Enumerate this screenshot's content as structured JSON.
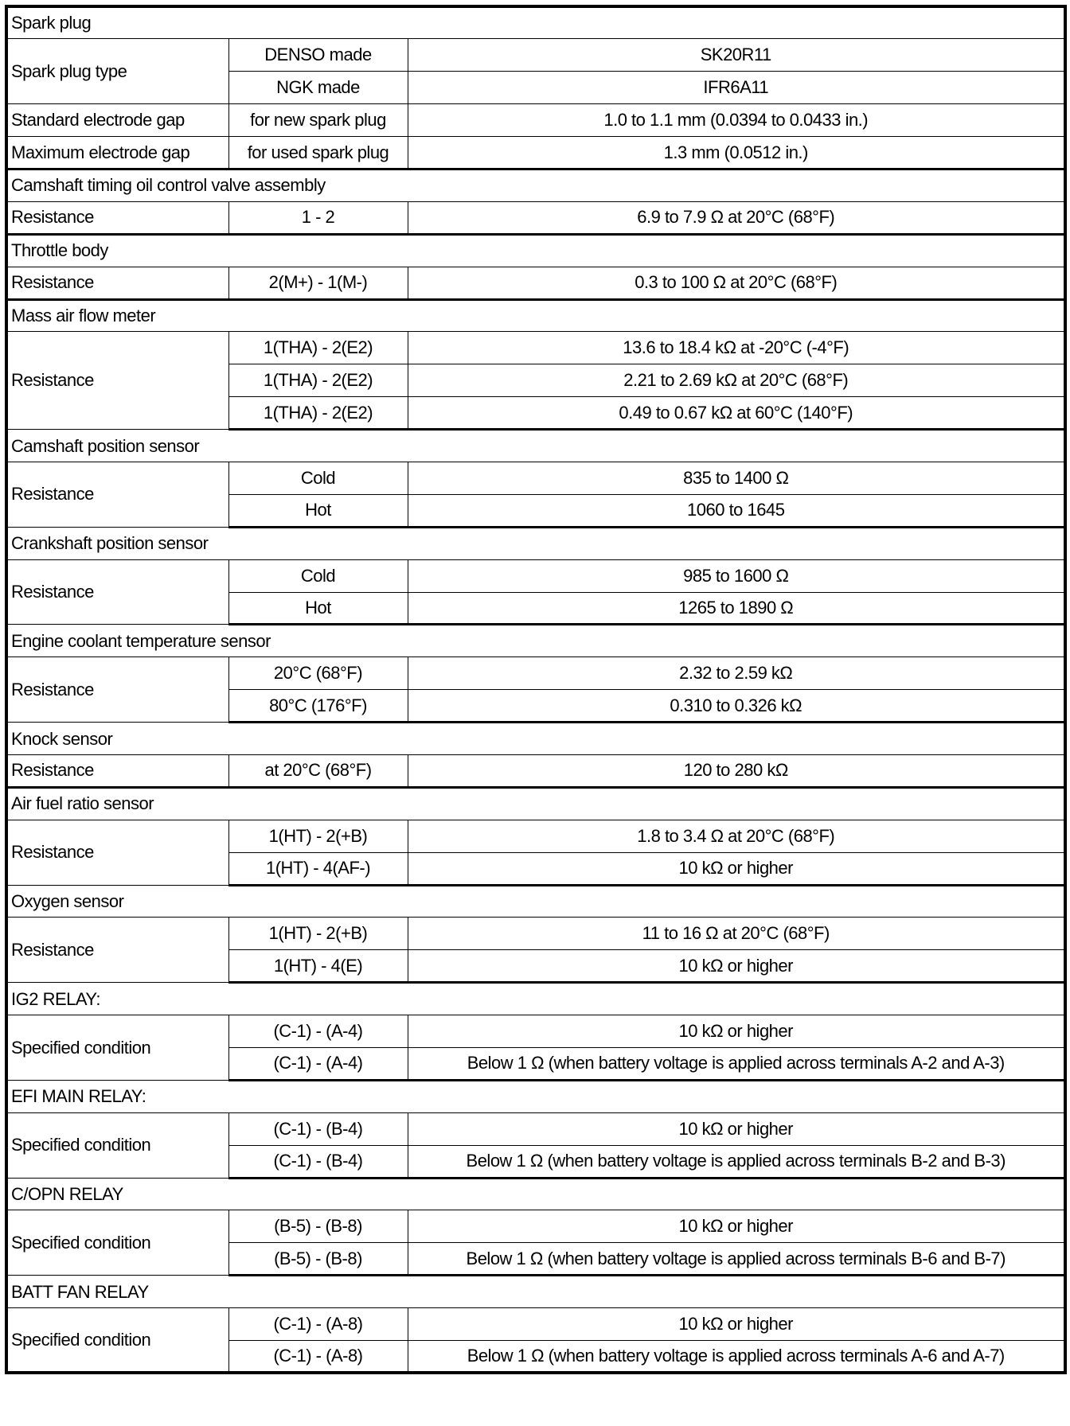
{
  "sections": [
    {
      "title": "Spark plug",
      "rows": [
        {
          "label": "Spark plug type",
          "sub": [
            {
              "cond": "DENSO made",
              "value": "SK20R11"
            },
            {
              "cond": "NGK made",
              "value": "IFR6A11"
            }
          ]
        },
        {
          "label": "Standard electrode gap",
          "sub": [
            {
              "cond": "for new spark plug",
              "value": "1.0 to 1.1 mm (0.0394 to 0.0433 in.)"
            }
          ]
        },
        {
          "label": "Maximum electrode gap",
          "sub": [
            {
              "cond": "for used spark plug",
              "value": "1.3 mm (0.0512 in.)"
            }
          ]
        }
      ]
    },
    {
      "title": "Camshaft timing oil control valve assembly",
      "rows": [
        {
          "label": "Resistance",
          "sub": [
            {
              "cond": "1 - 2",
              "value": "6.9 to 7.9 Ω at 20°C (68°F)"
            }
          ]
        }
      ]
    },
    {
      "title": "Throttle body",
      "rows": [
        {
          "label": "Resistance",
          "sub": [
            {
              "cond": "2(M+) - 1(M-)",
              "value": "0.3 to 100 Ω at 20°C (68°F)"
            }
          ]
        }
      ]
    },
    {
      "title": "Mass air flow meter",
      "rows": [
        {
          "label": "Resistance",
          "sub": [
            {
              "cond": "1(THA) - 2(E2)",
              "value": "13.6 to 18.4 kΩ at -20°C (-4°F)"
            },
            {
              "cond": "1(THA) - 2(E2)",
              "value": "2.21 to 2.69 kΩ at 20°C (68°F)"
            },
            {
              "cond": "1(THA) - 2(E2)",
              "value": "0.49 to 0.67 kΩ at 60°C (140°F)"
            }
          ]
        }
      ]
    },
    {
      "title": "Camshaft position sensor",
      "rows": [
        {
          "label": "Resistance",
          "sub": [
            {
              "cond": "Cold",
              "value": "835 to 1400 Ω"
            },
            {
              "cond": "Hot",
              "value": "1060 to 1645"
            }
          ]
        }
      ]
    },
    {
      "title": "Crankshaft position sensor",
      "rows": [
        {
          "label": "Resistance",
          "sub": [
            {
              "cond": "Cold",
              "value": "985 to 1600 Ω"
            },
            {
              "cond": "Hot",
              "value": "1265 to 1890 Ω"
            }
          ]
        }
      ]
    },
    {
      "title": "Engine coolant temperature sensor",
      "rows": [
        {
          "label": "Resistance",
          "sub": [
            {
              "cond": "20°C (68°F)",
              "value": "2.32 to 2.59 kΩ"
            },
            {
              "cond": "80°C (176°F)",
              "value": "0.310 to 0.326 kΩ"
            }
          ]
        }
      ]
    },
    {
      "title": "Knock sensor",
      "rows": [
        {
          "label": "Resistance",
          "sub": [
            {
              "cond": "at 20°C (68°F)",
              "value": "120 to 280 kΩ"
            }
          ]
        }
      ]
    },
    {
      "title": "Air fuel ratio sensor",
      "rows": [
        {
          "label": "Resistance",
          "sub": [
            {
              "cond": "1(HT) - 2(+B)",
              "value": "1.8 to 3.4 Ω at 20°C (68°F)"
            },
            {
              "cond": "1(HT) - 4(AF-)",
              "value": "10 kΩ or higher"
            }
          ]
        }
      ]
    },
    {
      "title": "Oxygen sensor",
      "rows": [
        {
          "label": "Resistance",
          "sub": [
            {
              "cond": "1(HT) - 2(+B)",
              "value": "11 to 16 Ω at 20°C (68°F)"
            },
            {
              "cond": "1(HT) - 4(E)",
              "value": "10 kΩ or higher"
            }
          ]
        }
      ]
    },
    {
      "title": "IG2 RELAY:",
      "rows": [
        {
          "label": "Specified condition",
          "sub": [
            {
              "cond": "(C-1) - (A-4)",
              "value": "10 kΩ or higher"
            },
            {
              "cond": "(C-1) - (A-4)",
              "value": "Below 1 Ω (when battery voltage is applied across terminals A-2 and A-3)"
            }
          ]
        }
      ]
    },
    {
      "title": "EFI MAIN RELAY:",
      "rows": [
        {
          "label": "Specified condition",
          "sub": [
            {
              "cond": "(C-1) - (B-4)",
              "value": "10 kΩ or higher"
            },
            {
              "cond": "(C-1) - (B-4)",
              "value": "Below 1 Ω (when battery voltage is applied across terminals B-2 and B-3)"
            }
          ]
        }
      ]
    },
    {
      "title": "C/OPN RELAY",
      "rows": [
        {
          "label": "Specified condition",
          "sub": [
            {
              "cond": "(B-5) - (B-8)",
              "value": "10 kΩ or higher"
            },
            {
              "cond": "(B-5) - (B-8)",
              "value": "Below 1 Ω (when battery voltage is applied across terminals B-6 and B-7)"
            }
          ]
        }
      ]
    },
    {
      "title": "BATT FAN RELAY",
      "rows": [
        {
          "label": "Specified condition",
          "sub": [
            {
              "cond": "(C-1) - (A-8)",
              "value": "10 kΩ or higher"
            },
            {
              "cond": "(C-1) - (A-8)",
              "value": "Below 1 Ω (when battery voltage is applied across terminals A-6 and A-7)"
            }
          ]
        }
      ]
    }
  ]
}
